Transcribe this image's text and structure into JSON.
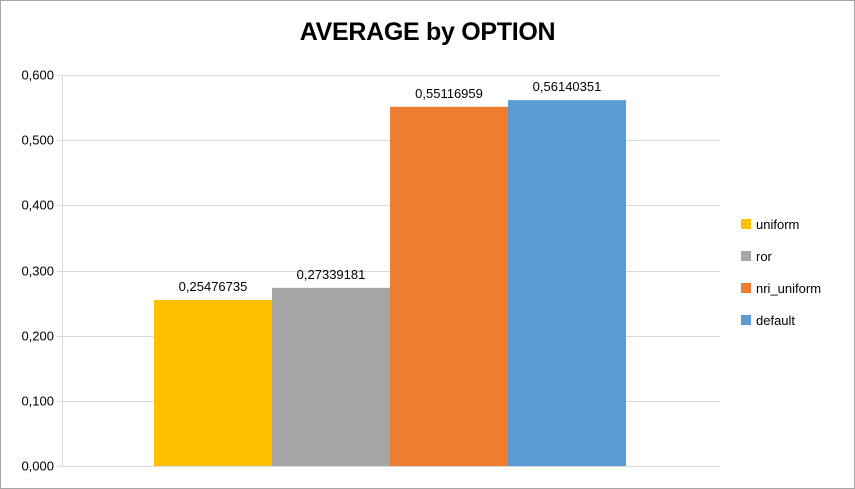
{
  "chart_data": {
    "type": "bar",
    "title": "AVERAGE by OPTION",
    "ylim": [
      0,
      0.6
    ],
    "yticks": [
      0,
      0.1,
      0.2,
      0.3,
      0.4,
      0.5,
      0.6
    ],
    "ytick_labels": [
      "0,000",
      "0,100",
      "0,200",
      "0,300",
      "0,400",
      "0,500",
      "0,600"
    ],
    "grid": true,
    "legend_position": "right",
    "series": [
      {
        "name": "uniform",
        "values": [
          0.25476735
        ],
        "label": "0,25476735",
        "color": "#FFC000"
      },
      {
        "name": "ror",
        "values": [
          0.27339181
        ],
        "label": "0,27339181",
        "color": "#A5A5A5"
      },
      {
        "name": "nri_uniform",
        "values": [
          0.55116959
        ],
        "label": "0,55116959",
        "color": "#ED7D31"
      },
      {
        "name": "default",
        "values": [
          0.56140351
        ],
        "label": "0,56140351",
        "color": "#5B9BD5"
      }
    ]
  }
}
